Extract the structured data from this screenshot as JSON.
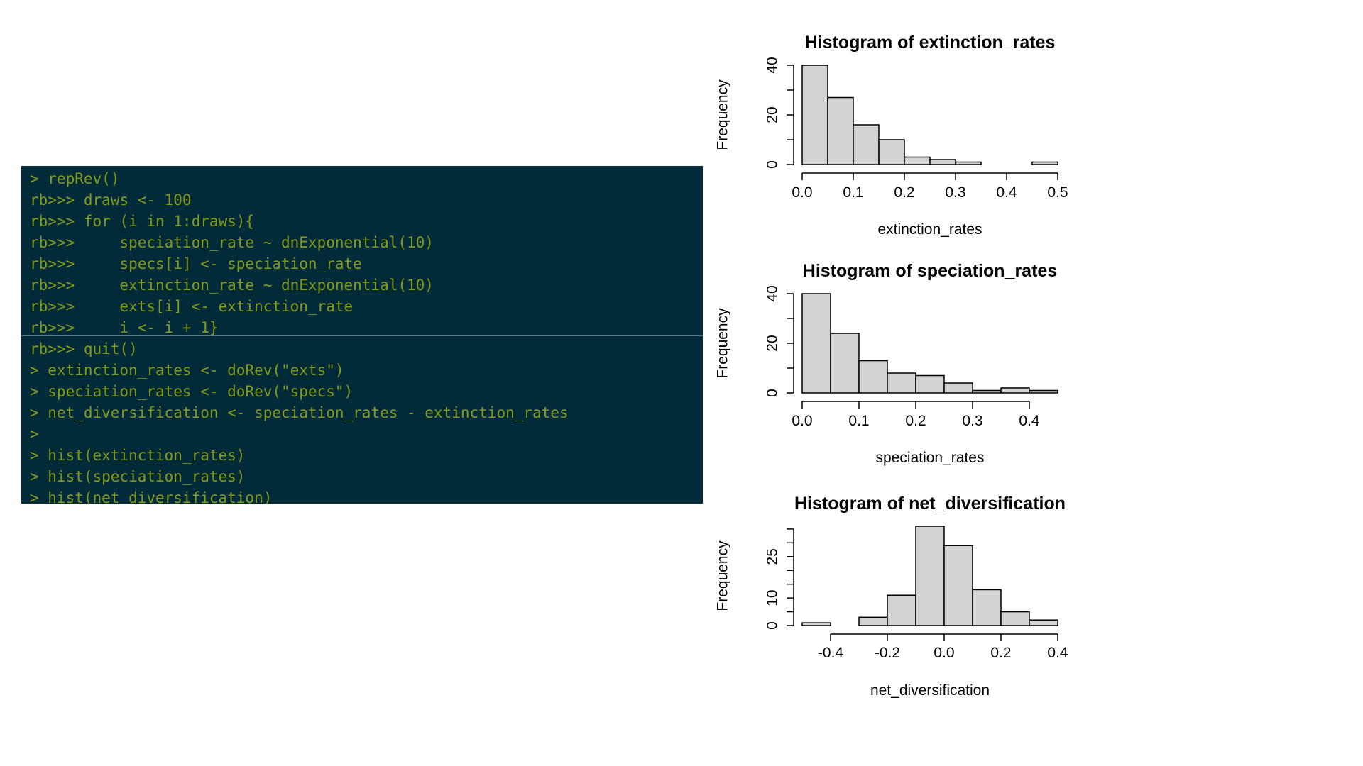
{
  "terminal": {
    "lines": [
      "> repRev()",
      "rb>>> draws <- 100",
      "rb>>> for (i in 1:draws){",
      "rb>>>     speciation_rate ~ dnExponential(10)",
      "rb>>>     specs[i] <- speciation_rate",
      "rb>>>     extinction_rate ~ dnExponential(10)",
      "rb>>>     exts[i] <- extinction_rate",
      "rb>>>     i <- i + 1}",
      "rb>>> quit()",
      "> extinction_rates <- doRev(\"exts\")",
      "> speciation_rates <- doRev(\"specs\")",
      "> net_diversification <- speciation_rates - extinction_rates",
      ">",
      "> hist(extinction_rates)",
      "> hist(speciation_rates)",
      "> hist(net_diversification)"
    ],
    "colors": {
      "background": "#022b3a",
      "text": "#859a1a"
    }
  },
  "chart_data": [
    {
      "type": "bar",
      "title": "Histogram of extinction_rates",
      "xlabel": "extinction_rates",
      "ylabel": "Frequency",
      "bin_edges": [
        0.0,
        0.05,
        0.1,
        0.15,
        0.2,
        0.25,
        0.3,
        0.35,
        0.4,
        0.45,
        0.5
      ],
      "values": [
        40,
        27,
        16,
        10,
        3,
        2,
        1,
        0,
        0,
        1
      ],
      "xticks": [
        0.0,
        0.1,
        0.2,
        0.3,
        0.4,
        0.5
      ],
      "xtick_labels": [
        "0.0",
        "0.1",
        "0.2",
        "0.3",
        "0.4",
        "0.5"
      ],
      "yticks": [
        0,
        20,
        40
      ],
      "ytick_labels": [
        "0",
        "20",
        "40"
      ],
      "minor_yticks": [
        0,
        10,
        20,
        30,
        40
      ],
      "ylim": [
        0,
        40
      ],
      "bar_color": "#d3d3d3",
      "grid": false
    },
    {
      "type": "bar",
      "title": "Histogram of speciation_rates",
      "xlabel": "speciation_rates",
      "ylabel": "Frequency",
      "bin_edges": [
        0.0,
        0.05,
        0.1,
        0.15,
        0.2,
        0.25,
        0.3,
        0.35,
        0.4,
        0.45
      ],
      "values": [
        40,
        24,
        13,
        8,
        7,
        4,
        1,
        2,
        1
      ],
      "xticks": [
        0.0,
        0.1,
        0.2,
        0.3,
        0.4
      ],
      "xtick_labels": [
        "0.0",
        "0.1",
        "0.2",
        "0.3",
        "0.4"
      ],
      "yticks": [
        0,
        20,
        40
      ],
      "ytick_labels": [
        "0",
        "20",
        "40"
      ],
      "minor_yticks": [
        0,
        10,
        20,
        30,
        40
      ],
      "ylim": [
        0,
        40
      ],
      "bar_color": "#d3d3d3",
      "grid": false
    },
    {
      "type": "bar",
      "title": "Histogram of net_diversification",
      "xlabel": "net_diversification",
      "ylabel": "Frequency",
      "bin_edges": [
        -0.5,
        -0.4,
        -0.3,
        -0.2,
        -0.1,
        0.0,
        0.1,
        0.2,
        0.3,
        0.4
      ],
      "values": [
        1,
        0,
        3,
        11,
        36,
        29,
        13,
        5,
        2
      ],
      "xticks": [
        -0.4,
        -0.2,
        0.0,
        0.2,
        0.4
      ],
      "xtick_labels": [
        "-0.4",
        "-0.2",
        "0.0",
        "0.2",
        "0.4"
      ],
      "yticks": [
        0,
        10,
        25
      ],
      "ytick_labels": [
        "0",
        "10",
        "25"
      ],
      "minor_yticks": [
        0,
        5,
        10,
        15,
        20,
        25,
        30,
        35
      ],
      "ylim": [
        0,
        36
      ],
      "bar_color": "#d3d3d3",
      "grid": false
    }
  ]
}
